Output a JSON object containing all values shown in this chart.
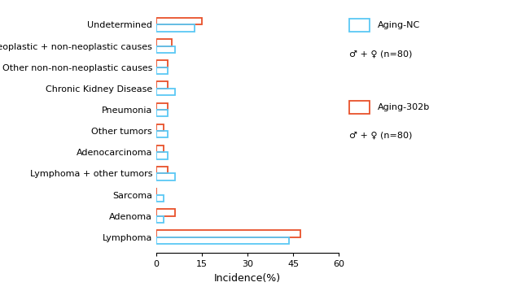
{
  "categories": [
    "Lymphoma",
    "Adenoma",
    "Sarcoma",
    "Lymphoma + other tumors",
    "Adenocarcinoma",
    "Other tumors",
    "Pneumonia",
    "Chronic Kidney Disease",
    "Other non-non-neoplastic causes",
    "Neoplastic + non-neoplastic causes",
    "Undetermined"
  ],
  "nc_values": [
    43.75,
    2.5,
    2.5,
    6.25,
    3.75,
    3.75,
    3.75,
    6.25,
    3.75,
    6.25,
    12.5
  ],
  "b302_values": [
    47.5,
    6.25,
    0.0,
    3.75,
    2.5,
    2.5,
    3.75,
    3.75,
    3.75,
    5.0,
    15.0
  ],
  "nc_color": "#5bc8f5",
  "b302_color": "#e8502a",
  "nc_label": "Aging-NC",
  "b302_label": "Aging-302b",
  "nc_subtitle": "♂ + ♀ (n=80)",
  "b302_subtitle": "♂ + ♀ (n=80)",
  "xlabel": "Incidence(%)",
  "xlim": [
    0,
    60
  ],
  "xticks": [
    0,
    15,
    30,
    45,
    60
  ],
  "bar_height": 0.32,
  "background_color": "#ffffff",
  "font_size": 8
}
